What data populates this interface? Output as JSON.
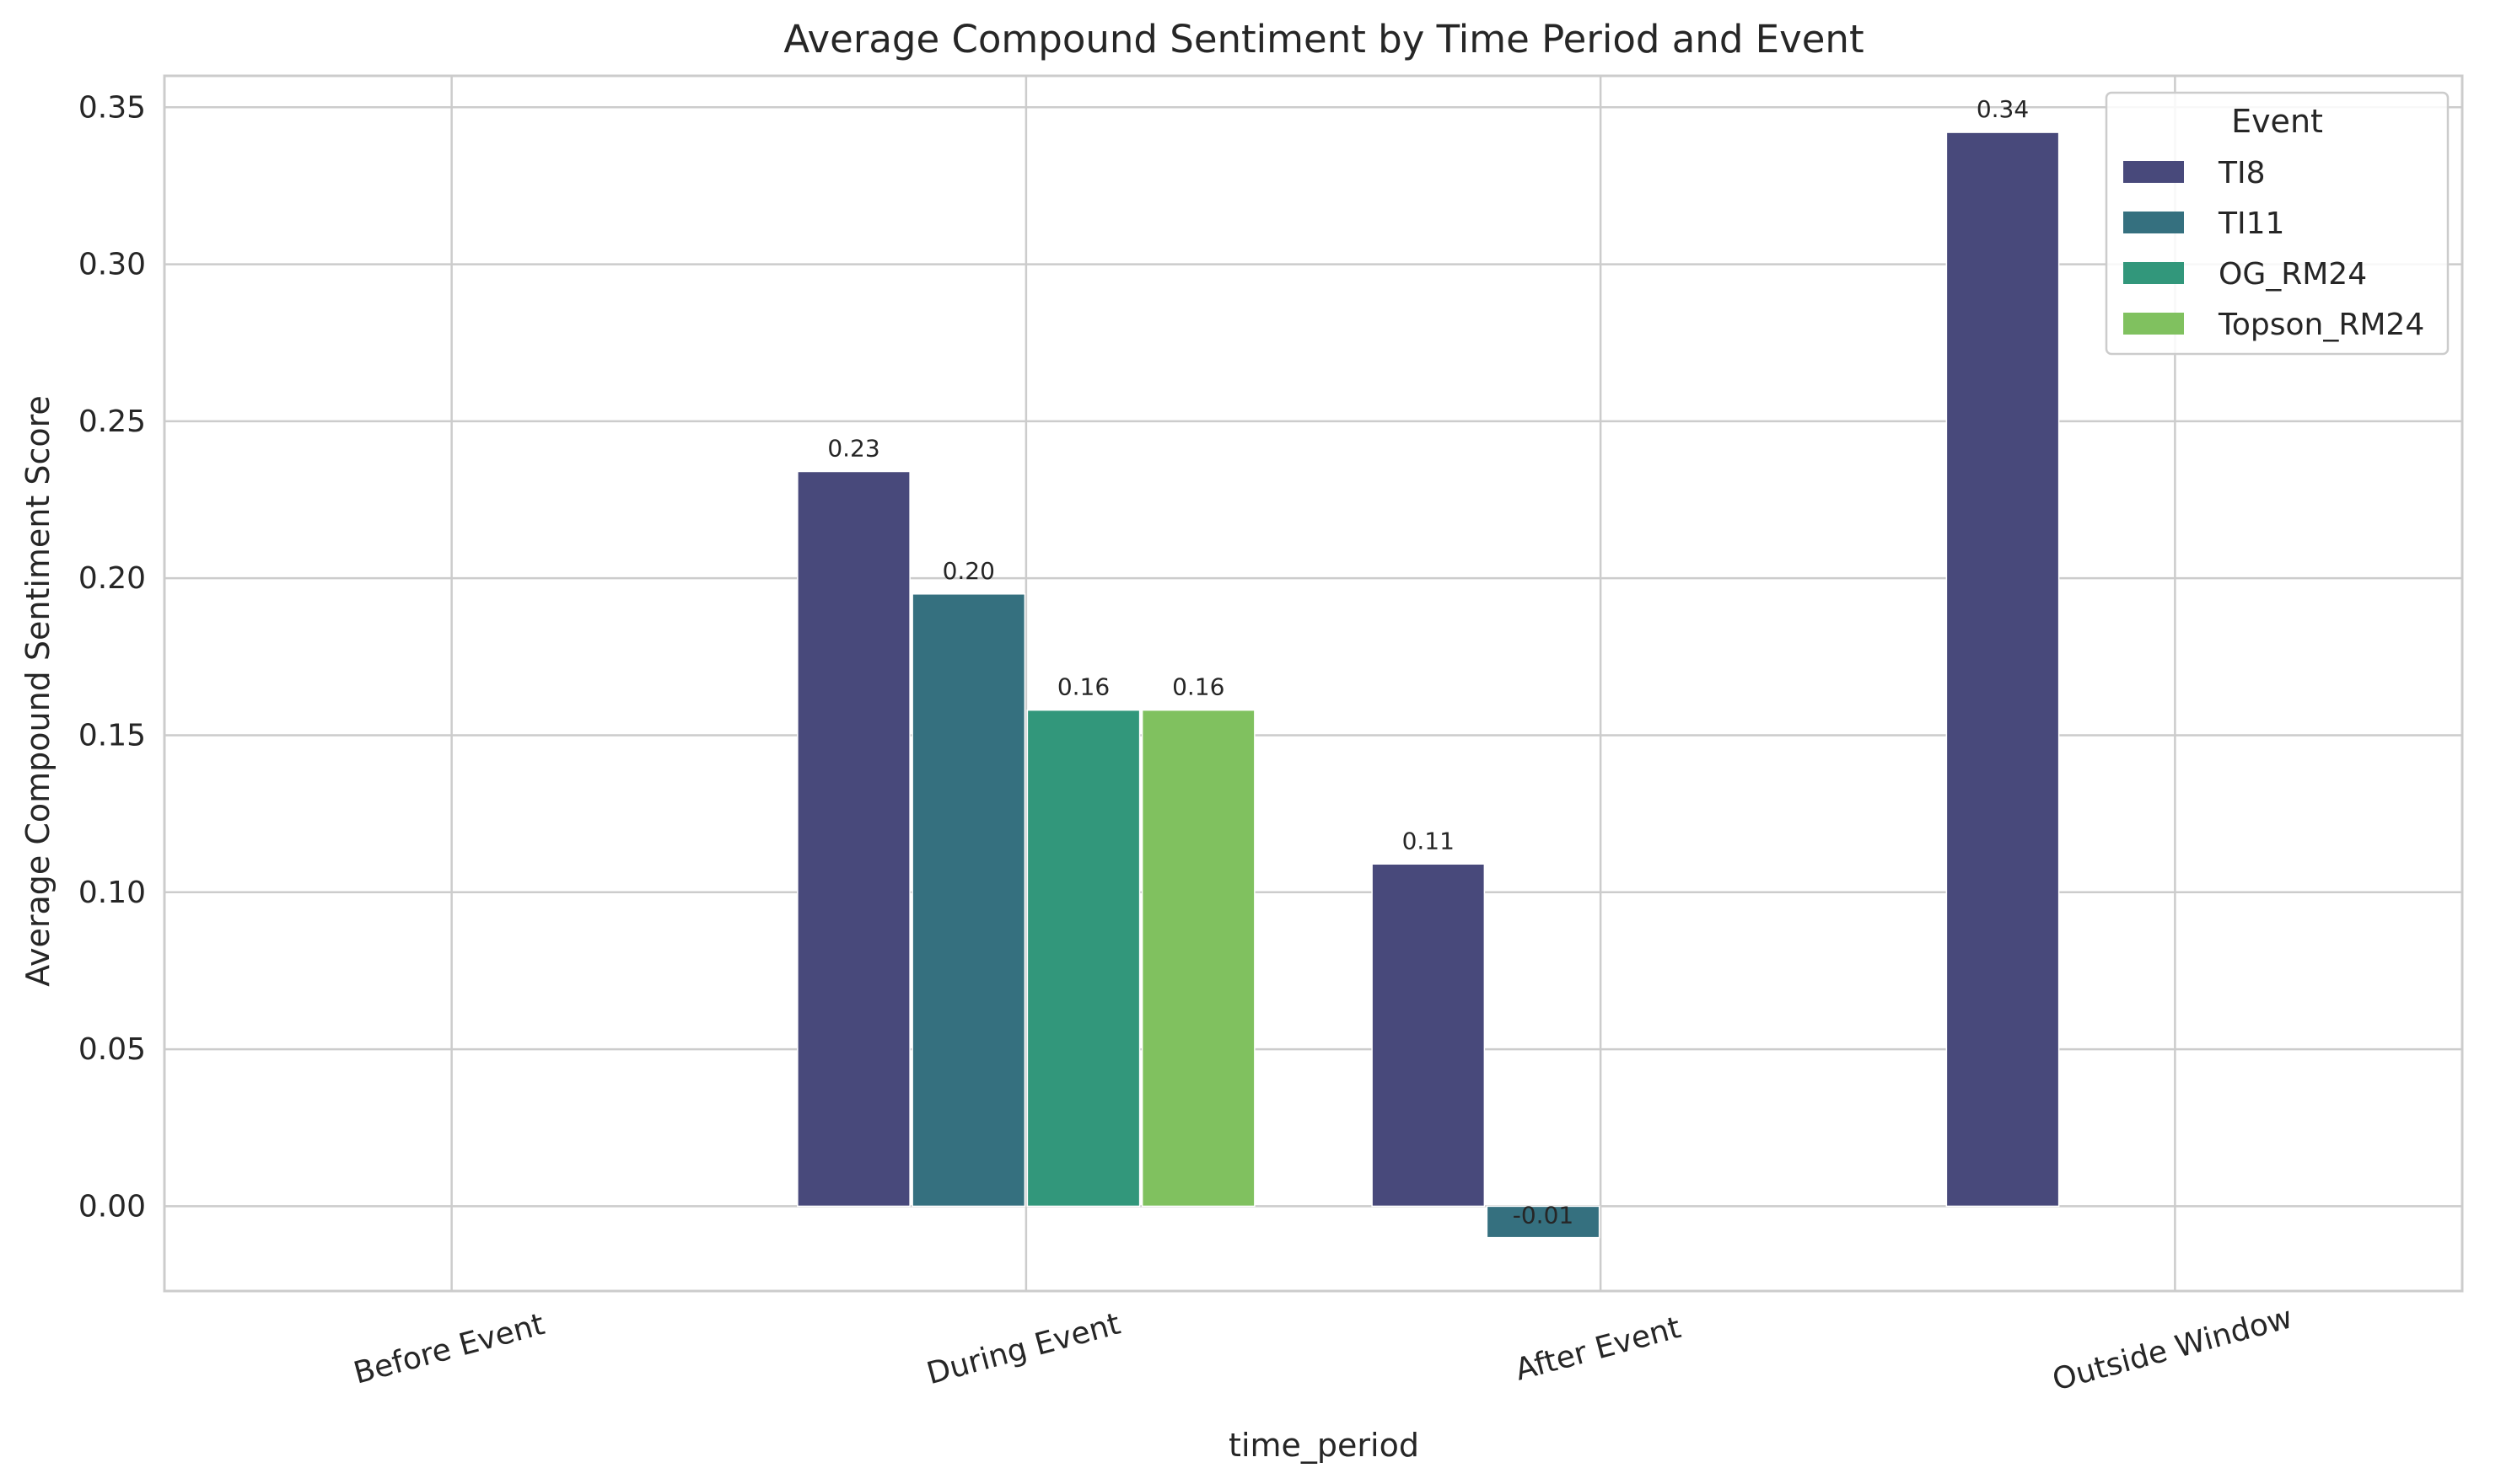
{
  "chart_data": {
    "type": "bar",
    "title": "Average Compound Sentiment by Time Period and Event",
    "xlabel": "time_period",
    "ylabel": "Average Compound Sentiment Score",
    "categories": [
      "Before Event",
      "During Event",
      "After Event",
      "Outside Window"
    ],
    "series": [
      {
        "name": "TI8",
        "color": "#48497b",
        "values": [
          null,
          0.234,
          0.109,
          0.342
        ]
      },
      {
        "name": "TI11",
        "color": "#35707f",
        "values": [
          null,
          0.195,
          -0.01,
          null
        ]
      },
      {
        "name": "OG_RM24",
        "color": "#32977b",
        "values": [
          null,
          0.158,
          null,
          null
        ]
      },
      {
        "name": "Topson_RM24",
        "color": "#80c15f",
        "values": [
          null,
          0.158,
          null,
          null
        ]
      }
    ],
    "data_labels": [
      [
        null,
        "0.23",
        "0.11",
        "0.34"
      ],
      [
        null,
        "0.20",
        "-0.01",
        null
      ],
      [
        null,
        "0.16",
        null,
        null
      ],
      [
        null,
        "0.16",
        null,
        null
      ]
    ],
    "ylim": [
      -0.027,
      0.36
    ],
    "yticks": [
      0.0,
      0.05,
      0.1,
      0.15,
      0.2,
      0.25,
      0.3,
      0.35
    ],
    "ytick_labels": [
      "0.00",
      "0.05",
      "0.10",
      "0.15",
      "0.20",
      "0.25",
      "0.30",
      "0.35"
    ],
    "grid": true,
    "legend": {
      "title": "Event",
      "placement": "top-right"
    }
  }
}
